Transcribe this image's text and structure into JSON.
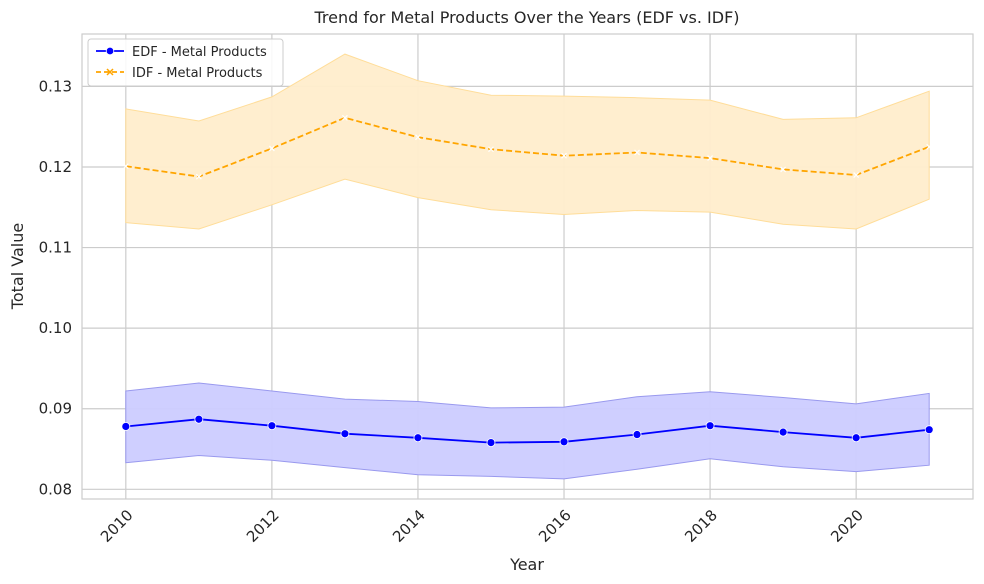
{
  "chart_data": {
    "type": "line",
    "title": "Trend for Metal Products Over the Years (EDF vs. IDF)",
    "xlabel": "Year",
    "ylabel": "Total Value",
    "xlim": [
      2009.4,
      2021.6
    ],
    "ylim": [
      0.0788,
      0.1365
    ],
    "xticks": [
      2010,
      2012,
      2014,
      2016,
      2018,
      2020
    ],
    "xtick_labels": [
      "2010",
      "2012",
      "2014",
      "2016",
      "2018",
      "2020"
    ],
    "yticks": [
      0.08,
      0.09,
      0.1,
      0.11,
      0.12,
      0.13
    ],
    "ytick_labels": [
      "0.08",
      "0.09",
      "0.10",
      "0.11",
      "0.12",
      "0.13"
    ],
    "grid": true,
    "legend_position": "top-left",
    "x": [
      2010,
      2011,
      2012,
      2013,
      2014,
      2015,
      2016,
      2017,
      2018,
      2019,
      2020,
      2021
    ],
    "series": [
      {
        "name": "EDF - Metal Products",
        "color": "#0000ff",
        "band_color": "#ccccff",
        "band_edge": "#9999ee",
        "line_style": "solid",
        "marker": "circle",
        "values": [
          0.0878,
          0.0887,
          0.0879,
          0.0869,
          0.0864,
          0.0858,
          0.0859,
          0.0868,
          0.0879,
          0.0871,
          0.0864,
          0.0874
        ],
        "lower": [
          0.0833,
          0.0842,
          0.0836,
          0.0827,
          0.0818,
          0.0816,
          0.0813,
          0.0825,
          0.0838,
          0.0828,
          0.0822,
          0.083
        ],
        "upper": [
          0.0922,
          0.0932,
          0.0922,
          0.0912,
          0.0909,
          0.0901,
          0.0902,
          0.0915,
          0.0921,
          0.0914,
          0.0906,
          0.0919
        ]
      },
      {
        "name": "IDF - Metal Products",
        "color": "#ffa500",
        "band_color": "#ffedcc",
        "band_edge": "#ffdd99",
        "line_style": "dashed",
        "marker": "x",
        "values": [
          0.1201,
          0.1188,
          0.1223,
          0.1261,
          0.1237,
          0.1222,
          0.1214,
          0.1218,
          0.1211,
          0.1197,
          0.119,
          0.1225
        ],
        "lower": [
          0.1131,
          0.1123,
          0.1153,
          0.1185,
          0.1162,
          0.1147,
          0.1141,
          0.1146,
          0.1144,
          0.1129,
          0.1123,
          0.116
        ],
        "upper": [
          0.1272,
          0.1257,
          0.1287,
          0.134,
          0.1307,
          0.1289,
          0.1288,
          0.1286,
          0.1283,
          0.1259,
          0.1261,
          0.1294
        ]
      }
    ]
  }
}
